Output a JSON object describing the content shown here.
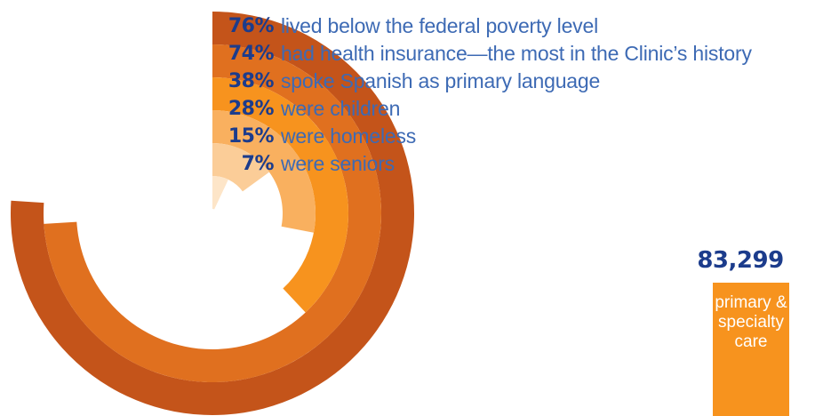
{
  "chart_data": {
    "type": "radial-bar",
    "unit": "%",
    "max": 100,
    "rings": [
      {
        "pct_label": "76%",
        "value": 76,
        "label": "lived below the federal poverty level",
        "color": "#c4541a"
      },
      {
        "pct_label": "74%",
        "value": 74,
        "label": "had health insurance—the most in the Clinic’s history",
        "color": "#e0701f"
      },
      {
        "pct_label": "38%",
        "value": 38,
        "label": "spoke Spanish as primary language",
        "color": "#f7931e"
      },
      {
        "pct_label": "28%",
        "value": 28,
        "label": "were children",
        "color": "#f9b05f"
      },
      {
        "pct_label": "15%",
        "value": 15,
        "label": "were homeless",
        "color": "#fbcd98"
      },
      {
        "pct_label": "7%",
        "value": 7,
        "label": "were seniors",
        "color": "#fde5c8"
      }
    ]
  },
  "stat": {
    "number": "83,299",
    "caption": [
      "primary &",
      "specialty",
      "care"
    ],
    "box_color": "#f7931e"
  }
}
